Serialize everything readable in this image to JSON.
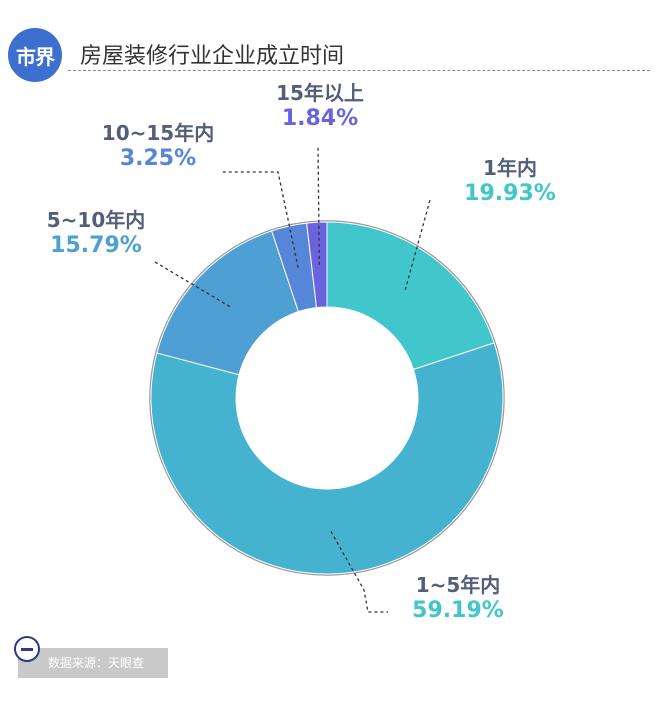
{
  "header": {
    "logo_text": "市界",
    "title": "房屋装修行业企业成立时间"
  },
  "footer": {
    "source": "数据来源：天眼查"
  },
  "chart_data": {
    "type": "pie",
    "variant": "donut",
    "title": "房屋装修行业企业成立时间",
    "unit": "%",
    "start_angle_deg": 0,
    "direction": "clockwise",
    "slices": [
      {
        "label": "1年内",
        "value": 19.93,
        "value_text": "19.93%",
        "color": "#40c6cb",
        "label_color": "#555e79",
        "value_color": "#40c6cb"
      },
      {
        "label": "1~5年内",
        "value": 59.19,
        "value_text": "59.19%",
        "color": "#45b3cf",
        "label_color": "#555e79",
        "value_color": "#40c6cb"
      },
      {
        "label": "5~10年内",
        "value": 15.79,
        "value_text": "15.79%",
        "color": "#4e9fd3",
        "label_color": "#555e79",
        "value_color": "#4e9fd3"
      },
      {
        "label": "10~15年内",
        "value": 3.25,
        "value_text": "3.25%",
        "color": "#5686d8",
        "label_color": "#555e79",
        "value_color": "#5686d8"
      },
      {
        "label": "15年以上",
        "value": 1.84,
        "value_text": "1.84%",
        "color": "#6a63e0",
        "label_color": "#555e79",
        "value_color": "#6a63e0"
      }
    ]
  }
}
